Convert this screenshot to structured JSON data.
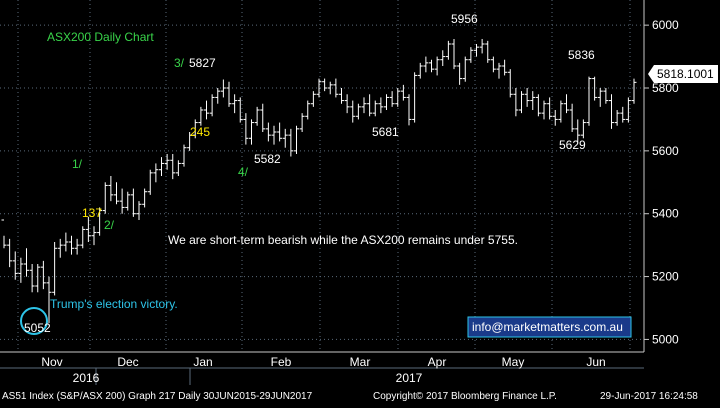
{
  "chart_data": {
    "type": "ohlc",
    "title": "ASX200 Daily Chart",
    "ylim": [
      4960,
      6080
    ],
    "yticks": [
      5000,
      5200,
      5400,
      5600,
      5800,
      6000
    ],
    "x_months": [
      "Nov",
      "Dec",
      "Jan",
      "Feb",
      "Mar",
      "Apr",
      "May",
      "Jun"
    ],
    "x_years": [
      "2016",
      "2017"
    ],
    "last_price": "5818.1001",
    "grid": true,
    "series": [
      {
        "values": [
          [
            5380,
            5330,
            5290,
            5300
          ],
          [
            5300,
            5320,
            5230,
            5250
          ],
          [
            5250,
            5280,
            5190,
            5210
          ],
          [
            5210,
            5260,
            5180,
            5240
          ],
          [
            5240,
            5290,
            5200,
            5220
          ],
          [
            5220,
            5240,
            5150,
            5170
          ],
          [
            5170,
            5240,
            5150,
            5230
          ],
          [
            5230,
            5250,
            5160,
            5180
          ],
          [
            5180,
            5200,
            5052,
            5150
          ],
          [
            5150,
            5310,
            5140,
            5290
          ],
          [
            5290,
            5320,
            5260,
            5300
          ],
          [
            5300,
            5340,
            5280,
            5310
          ],
          [
            5310,
            5330,
            5270,
            5290
          ],
          [
            5290,
            5320,
            5270,
            5300
          ],
          [
            5300,
            5360,
            5290,
            5350
          ],
          [
            5350,
            5390,
            5310,
            5330
          ],
          [
            5330,
            5360,
            5300,
            5340
          ],
          [
            5340,
            5420,
            5330,
            5410
          ],
          [
            5410,
            5500,
            5400,
            5490
          ],
          [
            5490,
            5520,
            5440,
            5460
          ],
          [
            5460,
            5500,
            5430,
            5440
          ],
          [
            5440,
            5480,
            5400,
            5420
          ],
          [
            5420,
            5470,
            5410,
            5460
          ],
          [
            5460,
            5480,
            5390,
            5400
          ],
          [
            5400,
            5440,
            5380,
            5430
          ],
          [
            5430,
            5480,
            5420,
            5470
          ],
          [
            5470,
            5540,
            5460,
            5530
          ],
          [
            5530,
            5560,
            5500,
            5540
          ],
          [
            5540,
            5580,
            5520,
            5560
          ],
          [
            5560,
            5590,
            5540,
            5570
          ],
          [
            5570,
            5590,
            5510,
            5530
          ],
          [
            5530,
            5570,
            5520,
            5560
          ],
          [
            5560,
            5620,
            5550,
            5610
          ],
          [
            5610,
            5660,
            5600,
            5650
          ],
          [
            5650,
            5700,
            5640,
            5690
          ],
          [
            5690,
            5740,
            5680,
            5730
          ],
          [
            5730,
            5760,
            5700,
            5720
          ],
          [
            5720,
            5780,
            5710,
            5770
          ],
          [
            5770,
            5800,
            5750,
            5790
          ],
          [
            5790,
            5827,
            5770,
            5800
          ],
          [
            5800,
            5820,
            5740,
            5750
          ],
          [
            5750,
            5780,
            5720,
            5760
          ],
          [
            5760,
            5770,
            5690,
            5700
          ],
          [
            5700,
            5720,
            5620,
            5640
          ],
          [
            5640,
            5700,
            5620,
            5690
          ],
          [
            5690,
            5740,
            5680,
            5730
          ],
          [
            5730,
            5750,
            5660,
            5670
          ],
          [
            5670,
            5690,
            5630,
            5650
          ],
          [
            5650,
            5680,
            5620,
            5660
          ],
          [
            5660,
            5690,
            5630,
            5640
          ],
          [
            5640,
            5670,
            5610,
            5650
          ],
          [
            5650,
            5670,
            5582,
            5600
          ],
          [
            5600,
            5680,
            5590,
            5670
          ],
          [
            5670,
            5720,
            5660,
            5710
          ],
          [
            5710,
            5760,
            5700,
            5750
          ],
          [
            5750,
            5790,
            5740,
            5780
          ],
          [
            5780,
            5830,
            5770,
            5820
          ],
          [
            5820,
            5830,
            5790,
            5800
          ],
          [
            5800,
            5820,
            5780,
            5810
          ],
          [
            5810,
            5830,
            5770,
            5780
          ],
          [
            5780,
            5800,
            5750,
            5760
          ],
          [
            5760,
            5780,
            5720,
            5740
          ],
          [
            5740,
            5760,
            5690,
            5710
          ],
          [
            5710,
            5750,
            5700,
            5740
          ],
          [
            5740,
            5770,
            5720,
            5750
          ],
          [
            5750,
            5780,
            5710,
            5720
          ],
          [
            5720,
            5760,
            5710,
            5750
          ],
          [
            5750,
            5770,
            5720,
            5740
          ],
          [
            5740,
            5780,
            5730,
            5770
          ],
          [
            5770,
            5790,
            5740,
            5750
          ],
          [
            5750,
            5800,
            5740,
            5790
          ],
          [
            5790,
            5810,
            5760,
            5770
          ],
          [
            5770,
            5780,
            5681,
            5700
          ],
          [
            5700,
            5850,
            5690,
            5840
          ],
          [
            5840,
            5880,
            5830,
            5870
          ],
          [
            5870,
            5900,
            5850,
            5880
          ],
          [
            5880,
            5890,
            5850,
            5860
          ],
          [
            5860,
            5900,
            5840,
            5890
          ],
          [
            5890,
            5920,
            5870,
            5900
          ],
          [
            5900,
            5950,
            5890,
            5940
          ],
          [
            5940,
            5956,
            5860,
            5870
          ],
          [
            5870,
            5880,
            5810,
            5830
          ],
          [
            5830,
            5900,
            5820,
            5890
          ],
          [
            5890,
            5930,
            5880,
            5920
          ],
          [
            5920,
            5940,
            5900,
            5930
          ],
          [
            5930,
            5956,
            5910,
            5940
          ],
          [
            5940,
            5950,
            5880,
            5890
          ],
          [
            5890,
            5900,
            5850,
            5860
          ],
          [
            5860,
            5880,
            5830,
            5870
          ],
          [
            5870,
            5890,
            5840,
            5850
          ],
          [
            5850,
            5860,
            5770,
            5780
          ],
          [
            5780,
            5800,
            5710,
            5730
          ],
          [
            5730,
            5790,
            5720,
            5780
          ],
          [
            5780,
            5800,
            5740,
            5760
          ],
          [
            5760,
            5790,
            5730,
            5770
          ],
          [
            5770,
            5780,
            5710,
            5720
          ],
          [
            5720,
            5760,
            5700,
            5750
          ],
          [
            5750,
            5770,
            5700,
            5710
          ],
          [
            5710,
            5730,
            5680,
            5700
          ],
          [
            5700,
            5760,
            5690,
            5750
          ],
          [
            5750,
            5780,
            5720,
            5730
          ],
          [
            5730,
            5750,
            5660,
            5670
          ],
          [
            5670,
            5700,
            5629,
            5650
          ],
          [
            5650,
            5700,
            5640,
            5690
          ],
          [
            5690,
            5836,
            5680,
            5830
          ],
          [
            5830,
            5836,
            5760,
            5770
          ],
          [
            5770,
            5800,
            5740,
            5790
          ],
          [
            5790,
            5800,
            5750,
            5760
          ],
          [
            5760,
            5780,
            5670,
            5690
          ],
          [
            5690,
            5730,
            5680,
            5720
          ],
          [
            5720,
            5740,
            5690,
            5700
          ],
          [
            5700,
            5770,
            5690,
            5760
          ],
          [
            5760,
            5830,
            5750,
            5818
          ]
        ]
      }
    ],
    "annotations": [
      {
        "text": "3/",
        "color": "#39d44a"
      },
      {
        "text": "5827",
        "color": "#ffffff"
      },
      {
        "text": "5956",
        "color": "#ffffff"
      },
      {
        "text": "5836",
        "color": "#ffffff"
      },
      {
        "text": "245",
        "color": "#ffe800"
      },
      {
        "text": "5681",
        "color": "#ffffff"
      },
      {
        "text": "5582",
        "color": "#ffffff"
      },
      {
        "text": "4/",
        "color": "#39d44a"
      },
      {
        "text": "5629",
        "color": "#ffffff"
      },
      {
        "text": "1/",
        "color": "#39d44a"
      },
      {
        "text": "137",
        "color": "#ffe800"
      },
      {
        "text": "2/",
        "color": "#39d44a"
      },
      {
        "text": "Trump's election victory.",
        "color": "#2ec4e8"
      },
      {
        "text": "5052",
        "color": "#ffffff"
      },
      {
        "text": "We are short-term bearish while the ASX200 remains under 5755.",
        "color": "#ffffff"
      },
      {
        "text": "info@marketmatters.com.au",
        "color": "#ffffff"
      }
    ]
  },
  "footer": {
    "left": "AS51 Index (S&P/ASX 200) Graph 217  Daily 30JUN2015-29JUN2017",
    "center": "Copyright© 2017 Bloomberg Finance L.P.",
    "right": "29-Jun-2017 16:24:58"
  },
  "colors": {
    "background": "#000000",
    "bars": "#ffffff",
    "grid": "#5a6a7a",
    "title": "#39d44a",
    "up_label": "#39d44a",
    "count_label": "#ffe800",
    "highlight": "#2ec4e8",
    "price_box_bg": "#ffffff",
    "email_box_bg": "#1a3a8a"
  }
}
